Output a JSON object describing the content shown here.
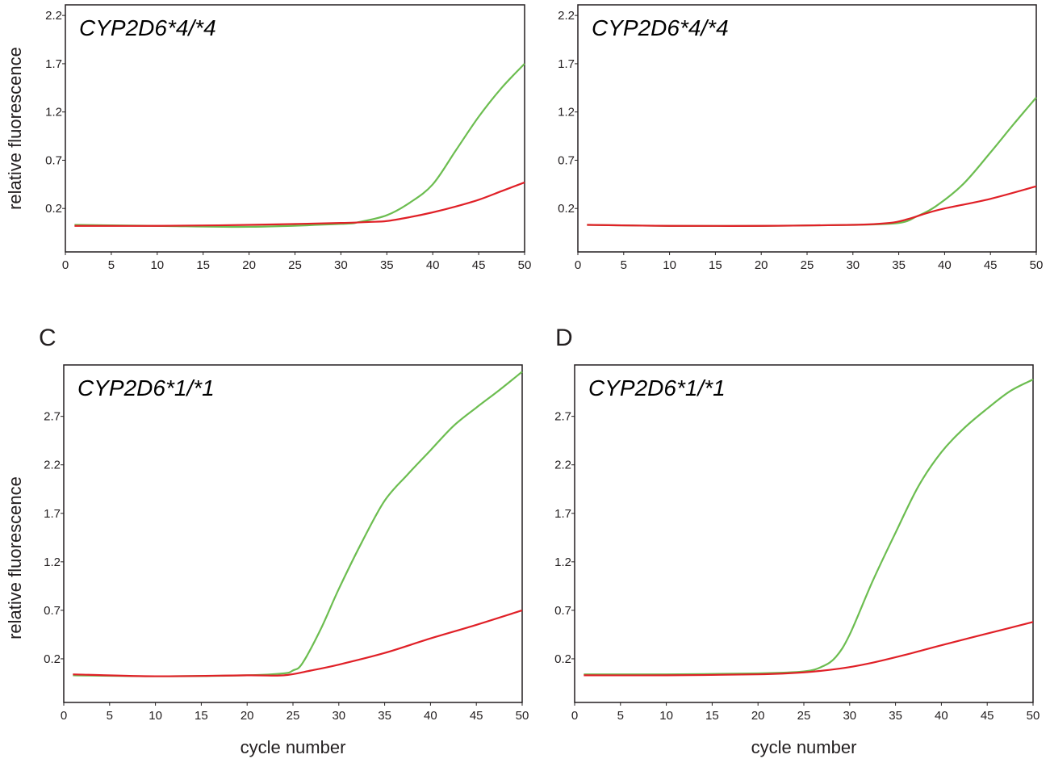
{
  "colors": {
    "green": "#6cbd50",
    "red": "#e02027",
    "axis": "#231f20"
  },
  "chart_data": [
    {
      "type": "line",
      "panel_letter": "",
      "genotype": "CYP2D6*4/*4",
      "xlabel": "",
      "ylabel": "relative fluorescence",
      "xlim": [
        0,
        50
      ],
      "ylim": [
        -0.25,
        2.31
      ],
      "xticks": [
        "0",
        "5",
        "10",
        "15",
        "20",
        "25",
        "30",
        "35",
        "40",
        "45",
        "50"
      ],
      "yticks": [
        "0.2",
        "0.7",
        "1.2",
        "1.7",
        "2.2"
      ],
      "grid": false,
      "series": [
        {
          "color": "green",
          "x": [
            1,
            10,
            20,
            30,
            32,
            35,
            37.5,
            40,
            42.5,
            45,
            47.5,
            50
          ],
          "y": [
            0.03,
            0.02,
            0.01,
            0.04,
            0.06,
            0.13,
            0.26,
            0.45,
            0.8,
            1.15,
            1.45,
            1.7
          ]
        },
        {
          "color": "red",
          "x": [
            1,
            10,
            20,
            30,
            33,
            35,
            37.5,
            40,
            42.5,
            45,
            47.5,
            50
          ],
          "y": [
            0.02,
            0.02,
            0.03,
            0.05,
            0.06,
            0.07,
            0.11,
            0.16,
            0.22,
            0.29,
            0.38,
            0.47
          ]
        }
      ]
    },
    {
      "type": "line",
      "panel_letter": "",
      "genotype": "CYP2D6*4/*4",
      "xlabel": "",
      "ylabel": "",
      "xlim": [
        0,
        50
      ],
      "ylim": [
        -0.25,
        2.31
      ],
      "xticks": [
        "0",
        "5",
        "10",
        "15",
        "20",
        "25",
        "30",
        "35",
        "40",
        "45",
        "50"
      ],
      "yticks": [
        "0.2",
        "0.7",
        "1.2",
        "1.7",
        "2.2"
      ],
      "grid": false,
      "series": [
        {
          "color": "green",
          "x": [
            1,
            10,
            20,
            30,
            35,
            37,
            39,
            42,
            45,
            47.5,
            50
          ],
          "y": [
            0.03,
            0.02,
            0.02,
            0.03,
            0.05,
            0.12,
            0.22,
            0.45,
            0.78,
            1.07,
            1.35
          ]
        },
        {
          "color": "red",
          "x": [
            1,
            10,
            20,
            30,
            34,
            36,
            38,
            40,
            45,
            50
          ],
          "y": [
            0.03,
            0.02,
            0.02,
            0.03,
            0.05,
            0.09,
            0.15,
            0.2,
            0.3,
            0.43
          ]
        }
      ]
    },
    {
      "type": "line",
      "panel_letter": "C",
      "genotype": "CYP2D6*1/*1",
      "xlabel": "cycle number",
      "ylabel": "relative fluorescence",
      "xlim": [
        0,
        50
      ],
      "ylim": [
        -0.25,
        3.23
      ],
      "xticks": [
        "0",
        "5",
        "10",
        "15",
        "20",
        "25",
        "30",
        "35",
        "40",
        "45",
        "50"
      ],
      "yticks": [
        "0.2",
        "0.7",
        "1.2",
        "1.7",
        "2.2",
        "2.7"
      ],
      "grid": false,
      "series": [
        {
          "color": "green",
          "x": [
            1,
            10,
            20,
            24,
            25,
            26,
            28,
            30,
            32.5,
            35,
            37.5,
            40,
            42.5,
            45,
            47.5,
            50
          ],
          "y": [
            0.03,
            0.02,
            0.03,
            0.05,
            0.08,
            0.15,
            0.5,
            0.92,
            1.4,
            1.83,
            2.1,
            2.35,
            2.6,
            2.79,
            2.97,
            3.16
          ]
        },
        {
          "color": "red",
          "x": [
            1,
            10,
            20,
            24,
            27,
            30,
            35,
            40,
            45,
            50
          ],
          "y": [
            0.04,
            0.02,
            0.03,
            0.03,
            0.08,
            0.14,
            0.26,
            0.41,
            0.55,
            0.7
          ]
        }
      ]
    },
    {
      "type": "line",
      "panel_letter": "D",
      "genotype": "CYP2D6*1/*1",
      "xlabel": "cycle number",
      "ylabel": "",
      "xlim": [
        0,
        50
      ],
      "ylim": [
        -0.25,
        3.23
      ],
      "xticks": [
        "0",
        "5",
        "10",
        "15",
        "20",
        "25",
        "30",
        "35",
        "40",
        "45",
        "50"
      ],
      "yticks": [
        "0.2",
        "0.7",
        "1.2",
        "1.7",
        "2.2",
        "2.7"
      ],
      "grid": false,
      "series": [
        {
          "color": "green",
          "x": [
            1,
            10,
            20,
            25,
            27,
            28.5,
            30,
            32.5,
            35,
            37.5,
            40,
            42.5,
            45,
            47.5,
            50
          ],
          "y": [
            0.04,
            0.04,
            0.05,
            0.07,
            0.12,
            0.22,
            0.45,
            1.0,
            1.5,
            1.98,
            2.33,
            2.58,
            2.78,
            2.96,
            3.08
          ]
        },
        {
          "color": "red",
          "x": [
            1,
            10,
            20,
            25,
            29,
            32,
            36,
            40,
            45,
            50
          ],
          "y": [
            0.03,
            0.03,
            0.04,
            0.06,
            0.1,
            0.15,
            0.24,
            0.34,
            0.46,
            0.58
          ]
        }
      ]
    }
  ]
}
